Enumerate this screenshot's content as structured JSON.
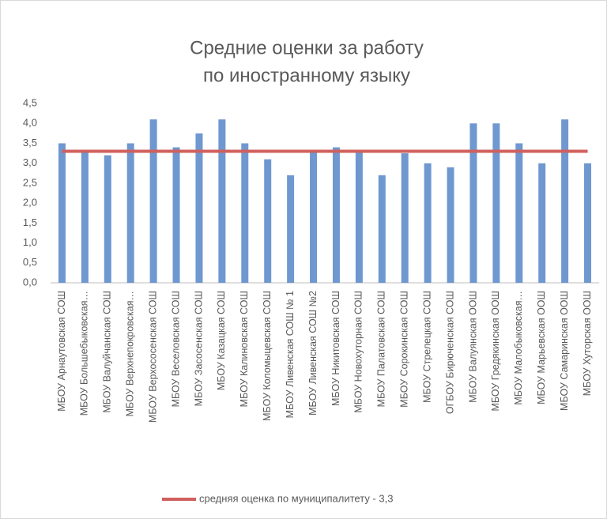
{
  "chart_data": {
    "type": "bar",
    "title": [
      "Средние оценки за работу",
      "по иностранному языку"
    ],
    "categories": [
      "МБОУ Арнаутовская СОШ",
      "МБОУ Большебыковская…",
      "МБОУ Валуйчанская СОШ",
      "МБОУ Верхнепокровская…",
      "МБОУ Верхососенская СОШ",
      "МБОУ Веселовская СОШ",
      "МБОУ Засосенская СОШ",
      "МБОУ Казацкая СОШ",
      "МБОУ Калиновская СОШ",
      "МБОУ Коломыцевская СОШ",
      "МБОУ Ливенская СОШ № 1",
      "МБОУ Ливенская СОШ №2",
      "МБОУ Никитовская СОШ",
      "МБОУ Новохуторная СОШ",
      "МБОУ Палатовская СОШ",
      "МБОУ Сорокинская СОШ",
      "МБОУ Стрелецкая СОШ",
      "ОГБОУ Бирюченская СОШ",
      "МБОУ Валуянская ООШ",
      "МБОУ Гредякинская ООШ",
      "МБОУ Малобыковская…",
      "МБОУ Марьевская ООШ",
      "МБОУ Самаринская ООШ",
      "МБОУ Хуторская ООШ"
    ],
    "series": [
      {
        "type": "bar",
        "color": "#6f98d0",
        "values": [
          3.5,
          3.3,
          3.2,
          3.5,
          4.1,
          3.4,
          3.75,
          4.1,
          3.5,
          3.1,
          2.7,
          3.3,
          3.4,
          3.3,
          2.7,
          3.25,
          3.0,
          2.9,
          4.0,
          4.0,
          3.5,
          3.0,
          4.1,
          3.0
        ]
      },
      {
        "type": "line",
        "name": "средняя оценка по муниципалитету - 3,3",
        "color": "#d0605e",
        "values": [
          3.3,
          3.3,
          3.3,
          3.3,
          3.3,
          3.3,
          3.3,
          3.3,
          3.3,
          3.3,
          3.3,
          3.3,
          3.3,
          3.3,
          3.3,
          3.3,
          3.3,
          3.3,
          3.3,
          3.3,
          3.3,
          3.3,
          3.3,
          3.3
        ]
      }
    ],
    "ylim": [
      0,
      4.5
    ],
    "yticks": [
      {
        "value": 0,
        "label": "0,0"
      },
      {
        "value": 0.5,
        "label": "0,5"
      },
      {
        "value": 1,
        "label": "1,0"
      },
      {
        "value": 1.5,
        "label": "1,5"
      },
      {
        "value": 2,
        "label": "2,0"
      },
      {
        "value": 2.5,
        "label": "2,5"
      },
      {
        "value": 3,
        "label": "3,0"
      },
      {
        "value": 3.5,
        "label": "3,5"
      },
      {
        "value": 4,
        "label": "4,0"
      },
      {
        "value": 4.5,
        "label": "4,5"
      }
    ],
    "grid": false,
    "legend": "bottom"
  }
}
